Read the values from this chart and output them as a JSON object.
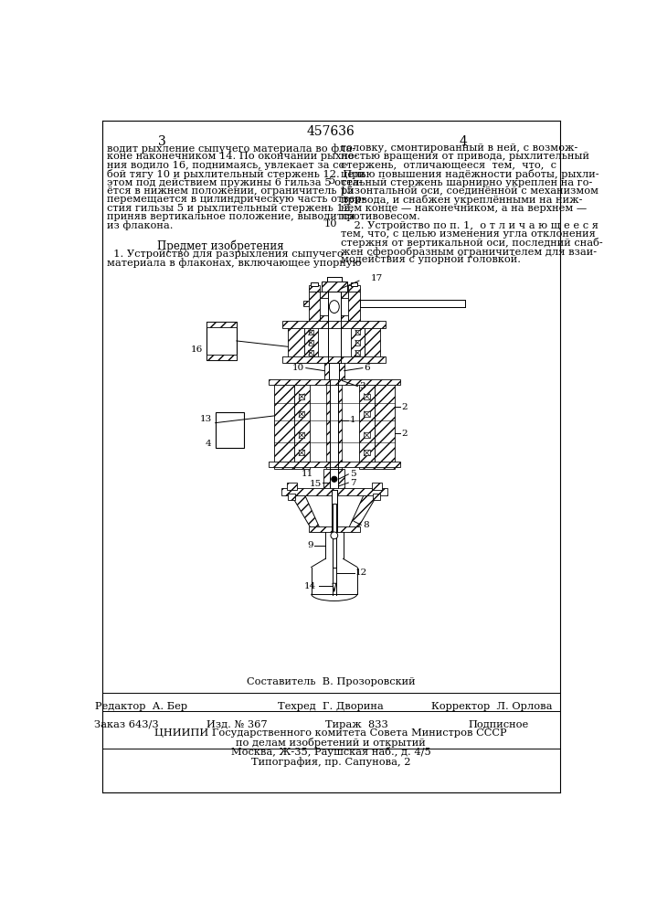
{
  "patent_number": "457636",
  "page_numbers": [
    "3",
    "4"
  ],
  "background_color": "#ffffff",
  "text_color": "#000000",
  "col1_lines": [
    "водит рыхление сыпучего материала во фла-",
    "коне наконечником 14. По окончании рыхле-",
    "ния водило 16, поднимаясь, увлекает за со-",
    "бой тягу 10 и рыхлительный стержень 12. При",
    "этом под действием пружины 6 гильза 5 оста-",
    "ётся в нижнем положении, ограничитель 15",
    "перемещается в цилиндрическую часть отвер-",
    "стия гильзы 5 и рыхлительный стержень 12,",
    "приняв вертикальное положение, выводится",
    "из флакона."
  ],
  "predmet_header": "Предмет изобретения",
  "predmet_lines": [
    "  1. Устройство для разрыхления сыпучего",
    "материала в флаконах, включающее упорную"
  ],
  "col2_lines": [
    "головку, смонтированный в ней, с возмож-",
    "ностью вращения от привода, рыхлительный",
    "стержень,  отличающееся  тем,  что,  с",
    "целью повышения надёжности работы, рыхли-",
    "тельный стержень шарнирно укреплен на го-",
    "ризонтальной оси, соединённой с механизмом",
    "привода, и снабжен укреплёнными на ниж-",
    "нем конце — наконечником, а на верхнем —",
    "противовесом.",
    "    2. Устройство по п. 1,  о т л и ч а ю щ е е с я",
    "тем, что, с целью изменения угла отклонения",
    "стержня от вертикальной оси, последний снаб-",
    "жен сферообразным ограничителем для взаи-",
    "модействия с упорной головкой."
  ],
  "composer_line": "Составитель  В. Прозоровский",
  "editor_label": "Редактор  А. Бер",
  "techred_label": "Техред  Г. Дворина",
  "corrector_label": "Корректор  Л. Орлова",
  "order_label": "Заказ 643/3",
  "izd_label": "Изд. № 367",
  "tirazh_label": "Тираж  833",
  "podpisnoe_label": "Подписное",
  "tsniip_line1": "ЦНИИПИ Государственного комитета Совета Министров СССР",
  "tsniip_line2": "по делам изобретений и открытий",
  "tsniip_line3": "Москва, Ж-35, Раушская наб., д. 4/5",
  "tipografiya": "Типография, пр. Сапунова, 2"
}
